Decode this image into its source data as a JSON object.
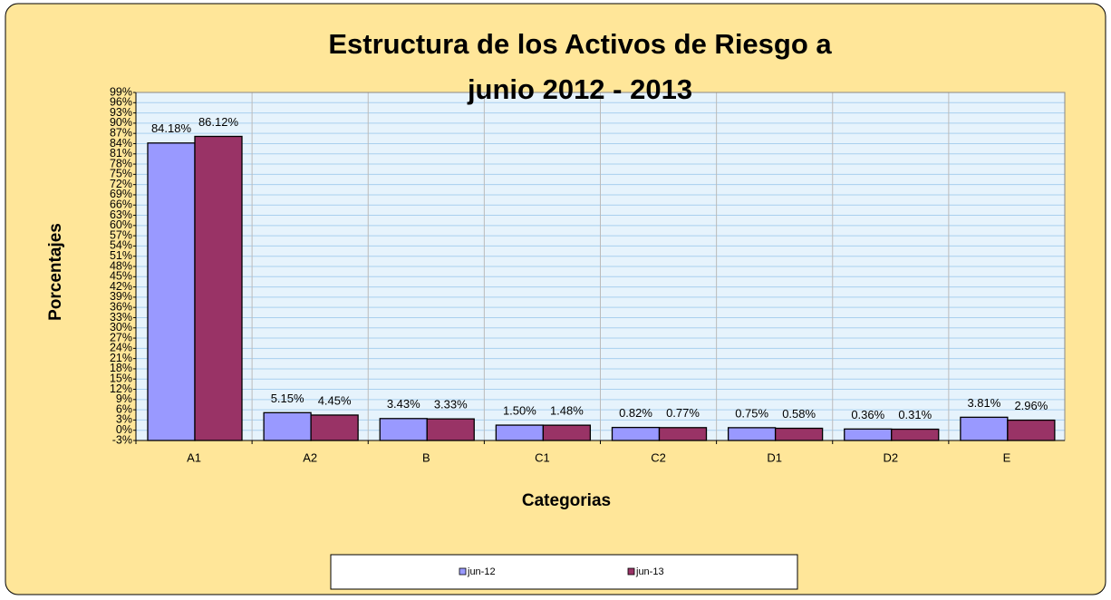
{
  "chart_data": {
    "type": "bar",
    "title": "Estructura de los Activos de Riesgo a junio 2012 - 2013",
    "x_label": "Categorias",
    "y_label": "Porcentajes",
    "categories": [
      "A1",
      "A2",
      "B",
      "C1",
      "C2",
      "D1",
      "D2",
      "E"
    ],
    "series": [
      {
        "name": "jun-12",
        "color": "#9999ff",
        "values": [
          84.18,
          5.15,
          3.43,
          1.5,
          0.82,
          0.75,
          0.36,
          3.81
        ],
        "value_labels": [
          "84.18%",
          "5.15%",
          "3.43%",
          "1.50%",
          "0.82%",
          "0.75%",
          "0.36%",
          "3.81%"
        ]
      },
      {
        "name": "jun-13",
        "color": "#993366",
        "values": [
          86.12,
          4.45,
          3.33,
          1.48,
          0.77,
          0.58,
          0.31,
          2.96
        ],
        "value_labels": [
          "86.12%",
          "4.45%",
          "3.33%",
          "1.48%",
          "0.77%",
          "0.58%",
          "0.31%",
          "2.96%"
        ]
      }
    ],
    "ylim": [
      -3,
      99
    ],
    "yticks": [
      {
        "value": -3,
        "label": "-3%"
      },
      {
        "value": 0,
        "label": "0%"
      },
      {
        "value": 3,
        "label": "3%"
      },
      {
        "value": 6,
        "label": "6%"
      },
      {
        "value": 9,
        "label": "9%"
      },
      {
        "value": 12,
        "label": "12%"
      },
      {
        "value": 15,
        "label": "15%"
      },
      {
        "value": 18,
        "label": "18%"
      },
      {
        "value": 21,
        "label": "21%"
      },
      {
        "value": 24,
        "label": "24%"
      },
      {
        "value": 27,
        "label": "27%"
      },
      {
        "value": 30,
        "label": "30%"
      },
      {
        "value": 33,
        "label": "33%"
      },
      {
        "value": 36,
        "label": "36%"
      },
      {
        "value": 39,
        "label": "39%"
      },
      {
        "value": 42,
        "label": "42%"
      },
      {
        "value": 45,
        "label": "45%"
      },
      {
        "value": 48,
        "label": "48%"
      },
      {
        "value": 51,
        "label": "51%"
      },
      {
        "value": 54,
        "label": "54%"
      },
      {
        "value": 57,
        "label": "57%"
      },
      {
        "value": 60,
        "label": "60%"
      },
      {
        "value": 63,
        "label": "63%"
      },
      {
        "value": 66,
        "label": "66%"
      },
      {
        "value": 69,
        "label": "69%"
      },
      {
        "value": 72,
        "label": "72%"
      },
      {
        "value": 75,
        "label": "75%"
      },
      {
        "value": 78,
        "label": "78%"
      },
      {
        "value": 81,
        "label": "81%"
      },
      {
        "value": 84,
        "label": "84%"
      },
      {
        "value": 87,
        "label": "87%"
      },
      {
        "value": 90,
        "label": "90%"
      },
      {
        "value": 93,
        "label": "93%"
      },
      {
        "value": 96,
        "label": "96%"
      },
      {
        "value": 99,
        "label": "99%"
      }
    ],
    "grid": true,
    "legend": "bottom"
  }
}
